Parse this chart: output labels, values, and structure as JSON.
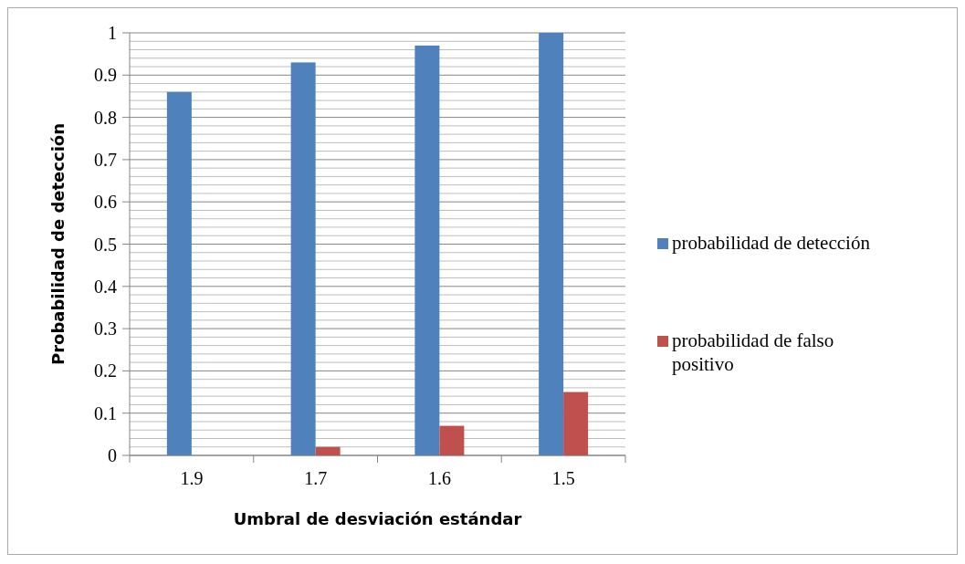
{
  "chart_data": {
    "type": "bar",
    "xlabel": "Umbral de desviación estándar",
    "ylabel": "Probabilidad de detección",
    "categories": [
      "1.9",
      "1.7",
      "1.6",
      "1.5"
    ],
    "series": [
      {
        "name": "probabilidad de detección",
        "color": "#4f81bd",
        "values": [
          0.86,
          0.93,
          0.97,
          1.0
        ]
      },
      {
        "name": "probabilidad de falso positivo",
        "color": "#c0504d",
        "values": [
          0,
          0.02,
          0.07,
          0.15
        ]
      }
    ],
    "ylim": [
      0,
      1
    ],
    "yticks": [
      0,
      {
        "value": 0.02,
        "label": null
      },
      {
        "value": 0.04,
        "label": null
      },
      {
        "value": 0.06,
        "label": null
      },
      {
        "value": 0.08,
        "label": null
      },
      0.1,
      {
        "value": 0.12,
        "label": null
      },
      {
        "value": 0.14,
        "label": null
      },
      {
        "value": 0.16,
        "label": null
      },
      {
        "value": 0.18,
        "label": null
      },
      0.2,
      {
        "value": 0.22,
        "label": null
      },
      {
        "value": 0.24,
        "label": null
      },
      {
        "value": 0.26,
        "label": null
      },
      {
        "value": 0.28,
        "label": null
      },
      0.3,
      {
        "value": 0.32,
        "label": null
      },
      {
        "value": 0.34,
        "label": null
      },
      {
        "value": 0.36,
        "label": null
      },
      {
        "value": 0.38,
        "label": null
      },
      0.4,
      {
        "value": 0.42,
        "label": null
      },
      {
        "value": 0.44,
        "label": null
      },
      {
        "value": 0.46,
        "label": null
      },
      {
        "value": 0.48,
        "label": null
      },
      0.5,
      {
        "value": 0.52,
        "label": null
      },
      {
        "value": 0.54,
        "label": null
      },
      {
        "value": 0.56,
        "label": null
      },
      {
        "value": 0.58,
        "label": null
      },
      0.6,
      {
        "value": 0.62,
        "label": null
      },
      {
        "value": 0.64,
        "label": null
      },
      {
        "value": 0.66,
        "label": null
      },
      {
        "value": 0.68,
        "label": null
      },
      0.7,
      {
        "value": 0.72,
        "label": null
      },
      {
        "value": 0.74,
        "label": null
      },
      {
        "value": 0.76,
        "label": null
      },
      {
        "value": 0.78,
        "label": null
      },
      0.8,
      {
        "value": 0.82,
        "label": null
      },
      {
        "value": 0.84,
        "label": null
      },
      {
        "value": 0.86,
        "label": null
      },
      {
        "value": 0.88,
        "label": null
      },
      0.9,
      {
        "value": 0.92,
        "label": null
      },
      {
        "value": 0.94,
        "label": null
      },
      {
        "value": 0.96,
        "label": null
      },
      {
        "value": 0.98,
        "label": null
      },
      1
    ],
    "grid": "y",
    "legend": "right"
  }
}
